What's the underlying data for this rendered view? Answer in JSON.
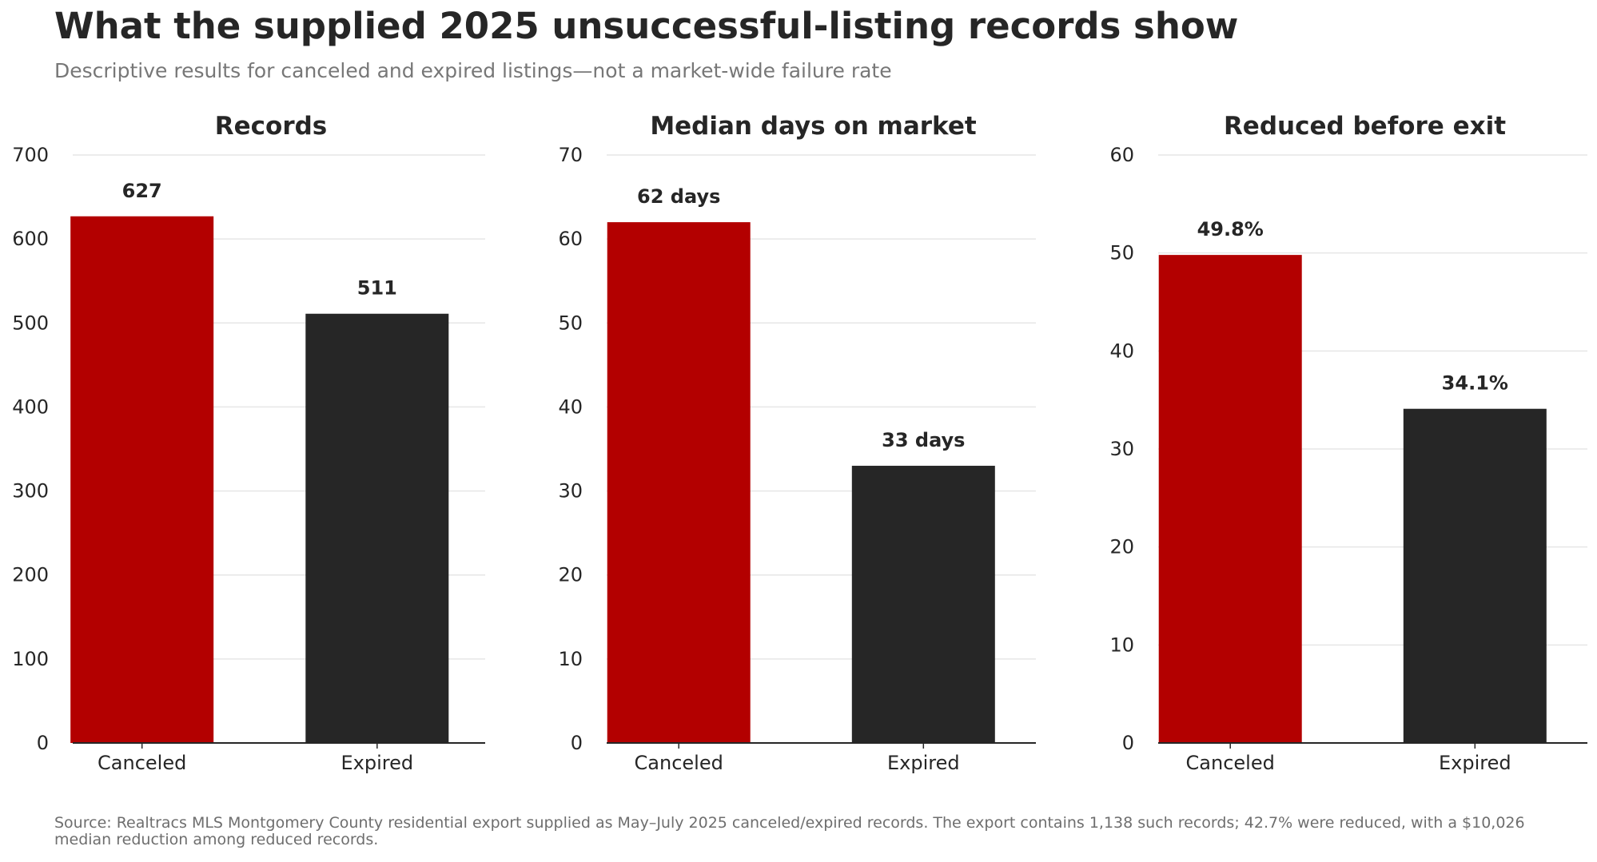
{
  "header": {
    "title": "What the supplied 2025 unsuccessful-listing records show",
    "subtitle": "Descriptive results for canceled and expired listings—not a market-wide failure rate"
  },
  "footer": {
    "source": "Source: Realtracs MLS Montgomery County residential export supplied as May–July 2025 canceled/expired records. The export contains 1,138 such records; 42.7% were reduced, with a $10,026 median reduction among reduced records."
  },
  "colors": {
    "canceled": "#b30000",
    "expired": "#262626"
  },
  "chart_data": [
    {
      "type": "bar",
      "title": "Records",
      "categories": [
        "Canceled",
        "Expired"
      ],
      "values": [
        627,
        511
      ],
      "data_labels": [
        "627",
        "511"
      ],
      "ylim": [
        0,
        700
      ],
      "yticks": [
        0,
        100,
        200,
        300,
        400,
        500,
        600,
        700
      ],
      "grid": true
    },
    {
      "type": "bar",
      "title": "Median days on market",
      "categories": [
        "Canceled",
        "Expired"
      ],
      "values": [
        62,
        33
      ],
      "data_labels": [
        "62 days",
        "33 days"
      ],
      "ylim": [
        0,
        70
      ],
      "yticks": [
        0,
        10,
        20,
        30,
        40,
        50,
        60,
        70
      ],
      "grid": true
    },
    {
      "type": "bar",
      "title": "Reduced before exit",
      "categories": [
        "Canceled",
        "Expired"
      ],
      "values": [
        49.8,
        34.1
      ],
      "data_labels": [
        "49.8%",
        "34.1%"
      ],
      "ylim": [
        0,
        60
      ],
      "yticks": [
        0,
        10,
        20,
        30,
        40,
        50,
        60
      ],
      "grid": true
    }
  ]
}
